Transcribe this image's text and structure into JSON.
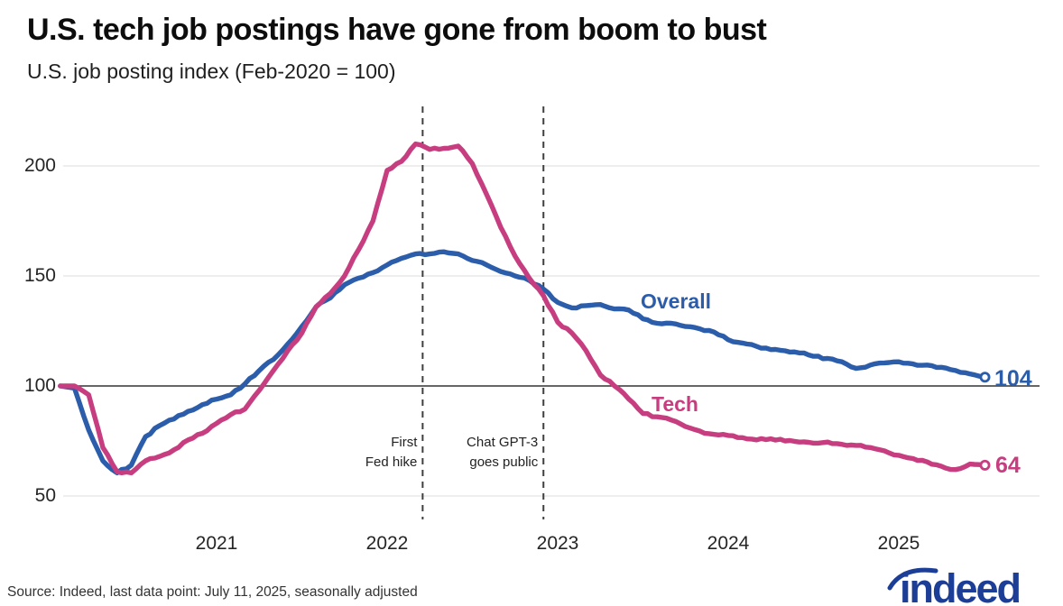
{
  "page": {
    "title": "U.S. tech job postings have gone from boom to bust",
    "subtitle": "U.S. job posting index (Feb-2020 = 100)",
    "source": "Source: Indeed, last data point: July 11, 2025, seasonally adjusted",
    "logo_text": "indeed"
  },
  "colors": {
    "overall": "#2b5daa",
    "tech": "#c73e80",
    "grid": "#dcdcdc",
    "baseline": "#333333",
    "dashed_line": "#3f3f3f",
    "logo": "#1d3e96",
    "text_dark": "#0d0d0d"
  },
  "chart_data": {
    "type": "line",
    "title": "U.S. tech job postings have gone from boom to bust",
    "subtitle": "U.S. job posting index (Feb-2020 = 100)",
    "x_unit": "month",
    "x_start": "2020-02",
    "x_end": "2025-07",
    "sampling": "monthly estimates read from weekly curve",
    "ylim": [
      50,
      215
    ],
    "yticks": [
      50,
      100,
      150,
      200
    ],
    "baseline_value": 100,
    "grid": true,
    "legend_position": "inline-labels",
    "xticks": [
      {
        "label": "2021",
        "month_index": 11
      },
      {
        "label": "2022",
        "month_index": 23
      },
      {
        "label": "2023",
        "month_index": 35
      },
      {
        "label": "2024",
        "month_index": 47
      },
      {
        "label": "2025",
        "month_index": 59
      }
    ],
    "series": [
      {
        "name": "Overall",
        "color": "#2b5daa",
        "end_label": "104",
        "last_value": 104,
        "values": [
          100,
          99,
          80,
          66,
          60.5,
          64,
          77,
          82,
          85,
          88.5,
          91.5,
          94,
          96,
          101,
          107,
          112,
          119,
          127,
          136,
          140,
          146,
          149,
          151.5,
          155,
          158,
          160,
          160,
          161,
          160,
          157,
          155,
          152,
          150,
          148,
          144,
          138,
          135.5,
          136.5,
          137,
          135,
          134.5,
          130.5,
          128.5,
          128.5,
          127,
          126,
          124.5,
          121,
          119.5,
          118,
          116.5,
          116,
          115,
          113.5,
          112.5,
          111,
          108,
          109.5,
          110.5,
          111,
          110,
          109.5,
          108.5,
          107,
          105.5,
          104
        ]
      },
      {
        "name": "Tech",
        "color": "#c73e80",
        "end_label": "64",
        "last_value": 64,
        "values": [
          100,
          100,
          96,
          72,
          61,
          60.5,
          66,
          68,
          71,
          75.5,
          78.5,
          83,
          87,
          89.5,
          98,
          107,
          116,
          124,
          136,
          142,
          150,
          162,
          175,
          198,
          202,
          210,
          207.5,
          208,
          209,
          201,
          187,
          172,
          159,
          149,
          141,
          129,
          124,
          116,
          105,
          100,
          94,
          87.5,
          86,
          84.5,
          81.5,
          79.5,
          78,
          77.5,
          76.5,
          75.5,
          76,
          75,
          74.5,
          74,
          74.5,
          73.5,
          73,
          72,
          70.5,
          68.5,
          67,
          65.5,
          63.5,
          62,
          64.5,
          64
        ]
      }
    ],
    "annotations": [
      {
        "lines": [
          "First",
          "Fed hike"
        ],
        "month_index": 25.5
      },
      {
        "lines": [
          "Chat GPT-3",
          "goes public"
        ],
        "month_index": 34
      }
    ]
  }
}
